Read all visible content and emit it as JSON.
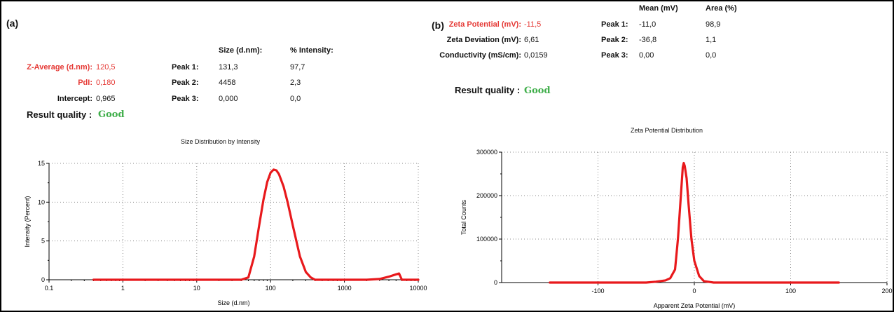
{
  "panel_a": {
    "label": "(a)",
    "z_avg_label": "Z-Average (d.nm):",
    "z_avg_value": "120,5",
    "pdi_label": "PdI:",
    "pdi_value": "0,180",
    "intercept_label": "Intercept:",
    "intercept_value": "0,965",
    "rq_label": "Result quality :",
    "rq_value": "Good",
    "col_size": "Size (d.nm):",
    "col_int": "% Intensity:",
    "peaks": [
      {
        "label": "Peak 1:",
        "size": "131,3",
        "pct": "97,7"
      },
      {
        "label": "Peak 2:",
        "size": "4458",
        "pct": "2,3"
      },
      {
        "label": "Peak 3:",
        "size": "0,000",
        "pct": "0,0"
      }
    ]
  },
  "panel_b": {
    "label": "(b)",
    "zp_label": "Zeta Potential (mV):",
    "zp_value": "-11,5",
    "zd_label": "Zeta Deviation (mV):",
    "zd_value": "6,61",
    "cond_label": "Conductivity (mS/cm):",
    "cond_value": "0,0159",
    "rq_label": "Result quality :",
    "rq_value": "Good",
    "col_mean": "Mean (mV)",
    "col_area": "Area (%)",
    "peaks": [
      {
        "label": "Peak 1:",
        "mean": "-11,0",
        "area": "98,9"
      },
      {
        "label": "Peak 2:",
        "mean": "-36,8",
        "area": "1,1"
      },
      {
        "label": "Peak 3:",
        "mean": "0,00",
        "area": "0,0"
      }
    ]
  },
  "colors": {
    "curve": "#e8191c",
    "label_red": "#e53935",
    "good_green": "#3fae4a"
  },
  "chart_data": [
    {
      "type": "line",
      "title": "Size Distribution by Intensity",
      "xlabel": "Size (d.nm)",
      "ylabel": "Intensity (Percent)",
      "xscale": "log",
      "xlim": [
        0.1,
        10000
      ],
      "ylim": [
        0,
        15
      ],
      "xticks": [
        "0.1",
        "1",
        "10",
        "100",
        "1000",
        "10000"
      ],
      "yticks": [
        "0",
        "5",
        "10",
        "15"
      ],
      "grid": true,
      "x": [
        0.4,
        10,
        40,
        50,
        60,
        70,
        80,
        90,
        100,
        110,
        120,
        130,
        150,
        170,
        200,
        250,
        300,
        350,
        400,
        500,
        1000,
        2000,
        3000,
        4000,
        5000,
        5500,
        6000,
        10000
      ],
      "y": [
        0,
        0,
        0,
        0.3,
        3.0,
        7.0,
        10.3,
        12.6,
        13.8,
        14.2,
        14.1,
        13.6,
        12.0,
        10.0,
        7.0,
        3.0,
        1.0,
        0.3,
        0,
        0,
        0,
        0,
        0.1,
        0.4,
        0.7,
        0.8,
        0,
        0
      ]
    },
    {
      "type": "line",
      "title": "Zeta Potential Distribution",
      "xlabel": "Apparent Zeta Potential (mV)",
      "ylabel": "Total Counts",
      "xlim": [
        -200,
        200
      ],
      "ylim": [
        0,
        300000
      ],
      "xticks": [
        "-100",
        "0",
        "100",
        "200"
      ],
      "yticks": [
        "0",
        "100000",
        "200000",
        "300000"
      ],
      "grid": true,
      "x": [
        -150,
        -50,
        -40,
        -30,
        -25,
        -20,
        -17,
        -14,
        -12,
        -11,
        -10,
        -8,
        -6,
        -3,
        0,
        5,
        10,
        20,
        150
      ],
      "y": [
        0,
        0,
        2000,
        5000,
        10000,
        30000,
        100000,
        200000,
        265000,
        275000,
        268000,
        240000,
        180000,
        100000,
        50000,
        15000,
        3000,
        0,
        0
      ]
    }
  ]
}
